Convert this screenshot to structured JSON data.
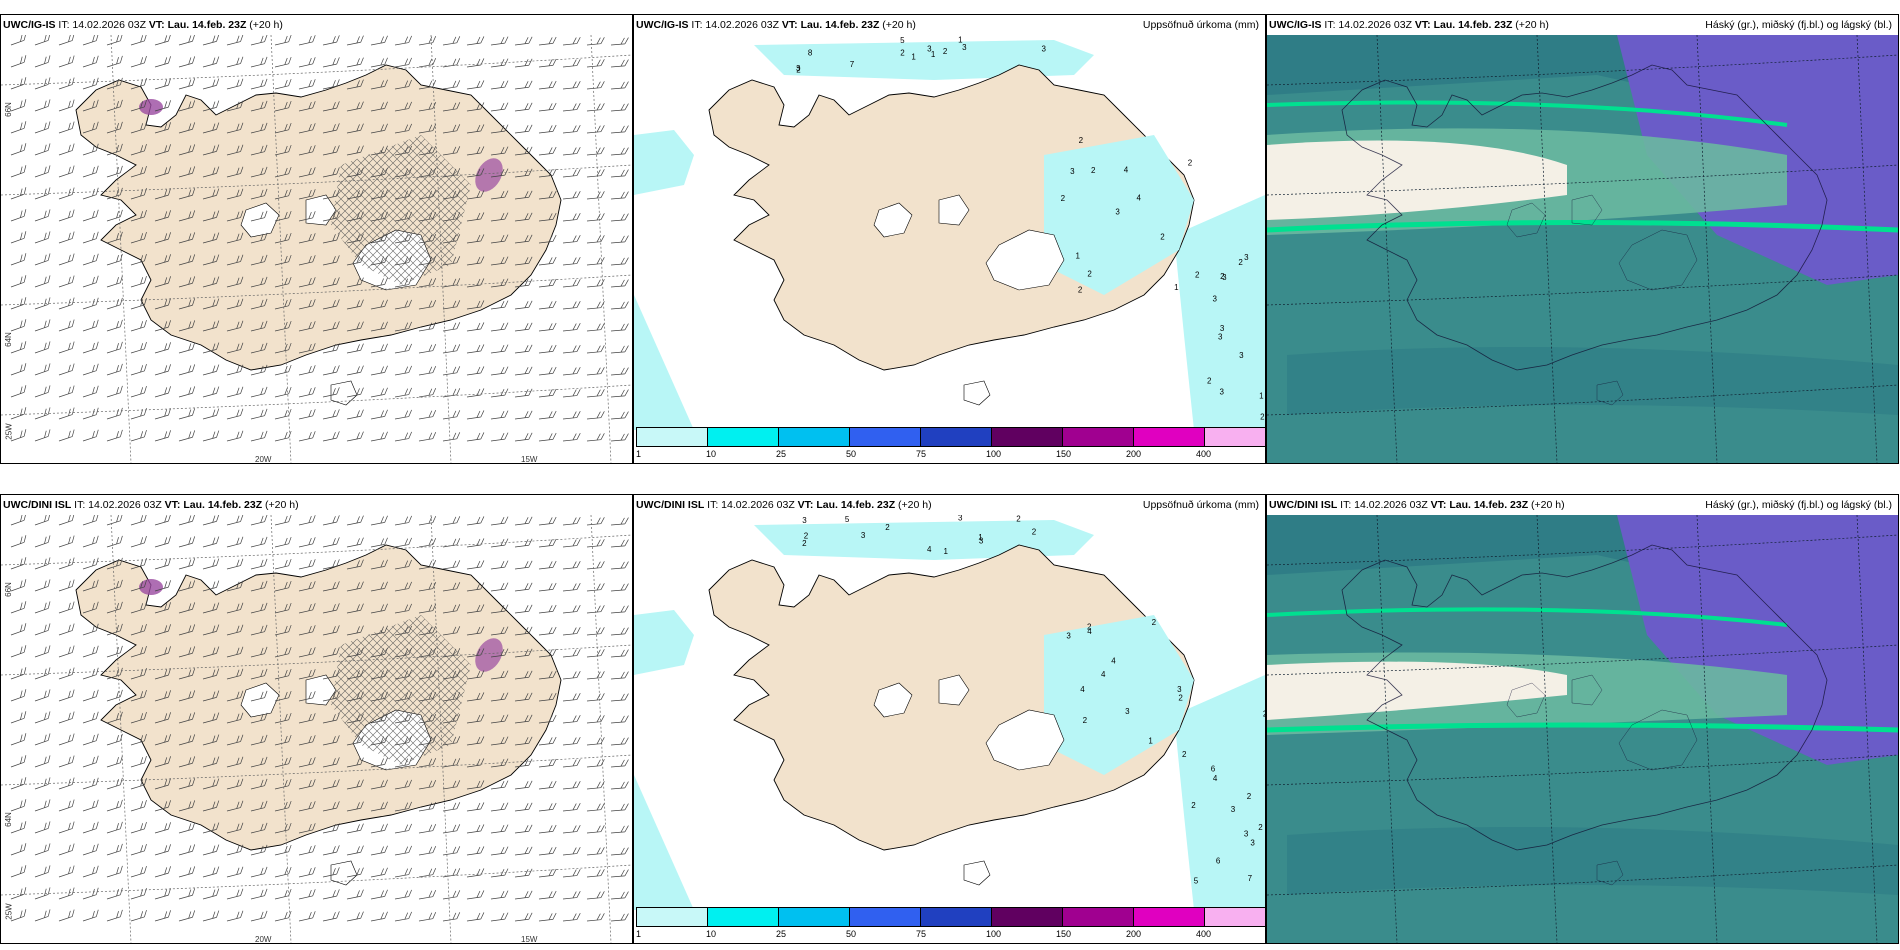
{
  "rows": [
    {
      "model": "UWC/IG-IS",
      "issue": "IT: 14.02.2026 03Z",
      "valid_label": "VT:",
      "valid": "Lau. 14.feb. 23Z",
      "lead": "(+20 h)"
    },
    {
      "model": "UWC/DINI ISL",
      "issue": "IT: 14.02.2026 03Z",
      "valid_label": "VT:",
      "valid": "Lau. 14.feb. 23Z",
      "lead": "(+20 h)"
    }
  ],
  "precip_title": "Uppsöfnuð úrkoma (mm)",
  "cloud_title": "Háský (gr.), miðský (fj.bl.) og lágský (bl.)",
  "axis": {
    "lon_20": "20W",
    "lon_15": "15W",
    "lat_66": "66N",
    "lat_64": "64N",
    "lat_25": "25W"
  },
  "colorbar": {
    "ticks": [
      "1",
      "10",
      "25",
      "50",
      "75",
      "100",
      "150",
      "200",
      "400"
    ],
    "colors": [
      "#c8f8f8",
      "#00f0f0",
      "#00c0f0",
      "#3060f0",
      "#2040c0",
      "#600060",
      "#a00090",
      "#e000c0",
      "#f8b0f0"
    ]
  },
  "precip_labels_top": [
    "1",
    "3",
    "3",
    "3",
    "4",
    "2",
    "1",
    "4",
    "2",
    "1",
    "2",
    "2",
    "8",
    "2",
    "3",
    "3",
    "2",
    "2",
    "3",
    "1",
    "3",
    "2",
    "2",
    "3",
    "2",
    "2",
    "2",
    "5",
    "2",
    "3",
    "3",
    "3",
    "3",
    "2",
    "2",
    "3",
    "7",
    "1",
    "1"
  ],
  "precip_labels_bottom": [
    "1",
    "2",
    "5",
    "5",
    "4",
    "7",
    "2",
    "2",
    "6",
    "1",
    "3",
    "2",
    "3",
    "2",
    "6",
    "2",
    "3",
    "3",
    "2",
    "2",
    "2",
    "2",
    "4",
    "2",
    "3",
    "2",
    "3",
    "2",
    "4",
    "2",
    "4",
    "1",
    "4",
    "3",
    "3",
    "3",
    "3",
    "4"
  ],
  "colors": {
    "land": "#f2e2cc",
    "precip_light": "#b8f6f6",
    "cloud_low": "#3a8c8c",
    "cloud_mid": "#6ab8a0",
    "cloud_high": "#6a5cc8",
    "cloud_band": "#00e090"
  }
}
